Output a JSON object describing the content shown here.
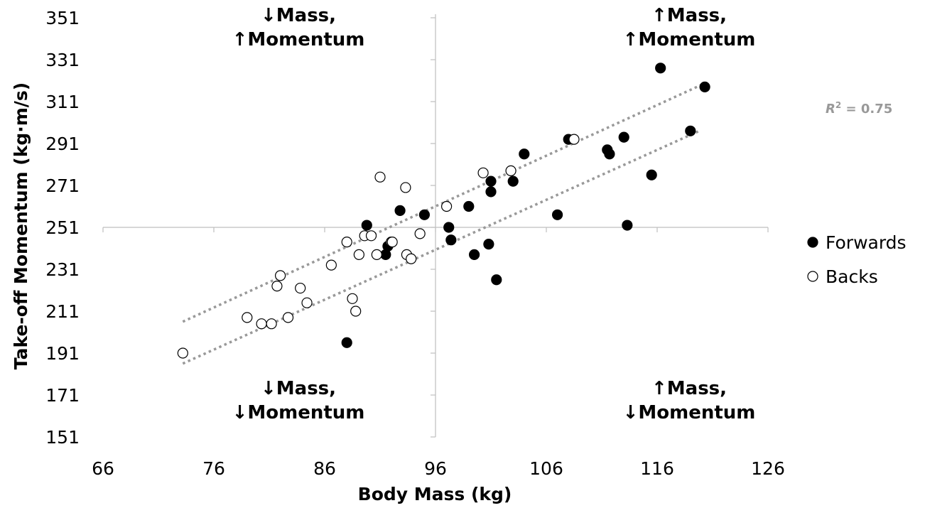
{
  "chart_data": {
    "type": "scatter",
    "xlabel": "Body Mass (kg)",
    "ylabel": "Take-off Momentum (kg·m/s)",
    "xlim": [
      66,
      126
    ],
    "ylim": [
      151,
      351
    ],
    "x_ticks": [
      "66",
      "76",
      "86",
      "96",
      "106",
      "116",
      "126"
    ],
    "y_ticks": [
      "151",
      "171",
      "191",
      "211",
      "231",
      "251",
      "271",
      "291",
      "311",
      "331",
      "351"
    ],
    "reference_lines": {
      "x": 96,
      "y": 251
    },
    "grid": false,
    "legend": "right",
    "series": [
      {
        "name": "Forwards",
        "marker": "filled-circle",
        "color": "#000000",
        "points": [
          [
            116.3,
            327
          ],
          [
            120.3,
            318
          ],
          [
            119,
            297
          ],
          [
            108,
            293
          ],
          [
            113,
            294
          ],
          [
            111.5,
            288
          ],
          [
            111.7,
            286
          ],
          [
            104,
            286
          ],
          [
            115.5,
            276
          ],
          [
            103,
            273
          ],
          [
            101,
            273
          ],
          [
            101,
            268
          ],
          [
            99,
            261
          ],
          [
            107,
            257
          ],
          [
            95,
            257
          ],
          [
            92.8,
            259
          ],
          [
            97.2,
            251
          ],
          [
            89.8,
            252
          ],
          [
            113.3,
            252
          ],
          [
            97.4,
            245
          ],
          [
            100.8,
            243
          ],
          [
            91.7,
            242
          ],
          [
            91.5,
            238
          ],
          [
            99.5,
            238
          ],
          [
            101.5,
            226
          ],
          [
            88,
            196
          ]
        ]
      },
      {
        "name": "Backs",
        "marker": "open-circle",
        "color": "#000000",
        "points": [
          [
            73.2,
            191
          ],
          [
            79,
            208
          ],
          [
            81.2,
            205
          ],
          [
            82.7,
            208
          ],
          [
            80.3,
            205
          ],
          [
            81.7,
            223
          ],
          [
            82.0,
            228
          ],
          [
            83.8,
            222
          ],
          [
            84.4,
            215
          ],
          [
            86.6,
            233
          ],
          [
            88.0,
            244
          ],
          [
            88.5,
            217
          ],
          [
            88.8,
            211
          ],
          [
            89.1,
            238
          ],
          [
            89.6,
            247
          ],
          [
            90.2,
            247
          ],
          [
            90.7,
            238
          ],
          [
            91,
            275
          ],
          [
            92.0,
            244
          ],
          [
            92.1,
            244
          ],
          [
            93.3,
            270
          ],
          [
            93.4,
            238
          ],
          [
            93.8,
            236
          ],
          [
            94.6,
            248
          ],
          [
            97,
            261
          ],
          [
            100.3,
            277
          ],
          [
            102.8,
            278
          ],
          [
            108.5,
            293
          ]
        ]
      }
    ],
    "trendlines": [
      {
        "series": "Forwards",
        "style": "dotted",
        "color": "#999999",
        "from": [
          73.2,
          186
        ],
        "to": [
          119.8,
          297
        ]
      },
      {
        "series": "Backs",
        "style": "dotted",
        "color": "#999999",
        "from": [
          73.2,
          206
        ],
        "to": [
          120,
          319
        ]
      }
    ],
    "annotations": [
      {
        "id": "q-top-left",
        "lines": [
          "↓Mass,",
          "↑Momentum"
        ]
      },
      {
        "id": "q-top-right",
        "lines": [
          "↑Mass,",
          "↑Momentum"
        ]
      },
      {
        "id": "q-bottom-left",
        "lines": [
          "↓Mass,",
          "↓Momentum"
        ]
      },
      {
        "id": "q-bottom-right",
        "lines": [
          "↑Mass,",
          "↓Momentum"
        ]
      },
      {
        "id": "r-squared",
        "label_italic": "R",
        "label_sup": "2",
        "label_rest": " = 0.75"
      }
    ]
  }
}
